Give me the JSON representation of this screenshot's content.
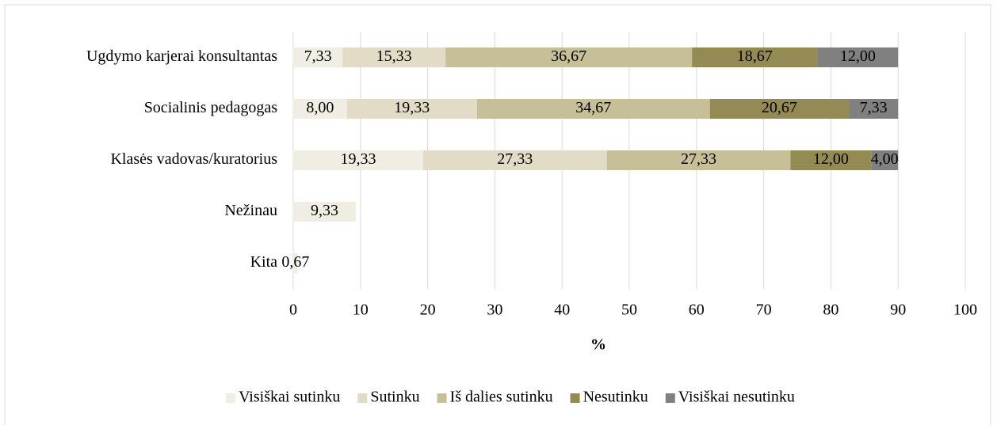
{
  "chart_data": {
    "type": "stacked-barh",
    "categories": [
      "Ugdymo karjerai konsultantas",
      "Socialinis pedagogas",
      "Klasės vadovas/kuratorius",
      "Nežinau",
      "Kita"
    ],
    "series": [
      {
        "name": "Visiškai sutinku",
        "color": "#f0ede3",
        "values": [
          7.33,
          8.0,
          19.33,
          9.33,
          0.67
        ],
        "value_labels": [
          "7,33",
          "8,00",
          "19,33",
          "9,33",
          "0,67"
        ]
      },
      {
        "name": "Sutinku",
        "color": "#e2dcc6",
        "values": [
          15.33,
          19.33,
          27.33,
          null,
          null
        ],
        "value_labels": [
          "15,33",
          "19,33",
          "27,33",
          null,
          null
        ]
      },
      {
        "name": "Iš dalies sutinku",
        "color": "#c6bf98",
        "values": [
          36.67,
          34.67,
          27.33,
          null,
          null
        ],
        "value_labels": [
          "36,67",
          "34,67",
          "27,33",
          null,
          null
        ]
      },
      {
        "name": "Nesutinku",
        "color": "#948b54",
        "values": [
          18.67,
          20.67,
          12.0,
          null,
          null
        ],
        "value_labels": [
          "18,67",
          "20,67",
          "12,00",
          null,
          null
        ]
      },
      {
        "name": "Visiškai nesutinku",
        "color": "#808080",
        "values": [
          12.0,
          7.33,
          4.0,
          null,
          null
        ],
        "value_labels": [
          "12,00",
          "7,33",
          "4,00",
          null,
          null
        ]
      }
    ],
    "xlabel": "%",
    "xlim": [
      0,
      100
    ],
    "xticks": [
      0,
      10,
      20,
      30,
      40,
      50,
      60,
      70,
      80,
      90,
      100
    ],
    "grid": true,
    "legend": "bottom"
  }
}
